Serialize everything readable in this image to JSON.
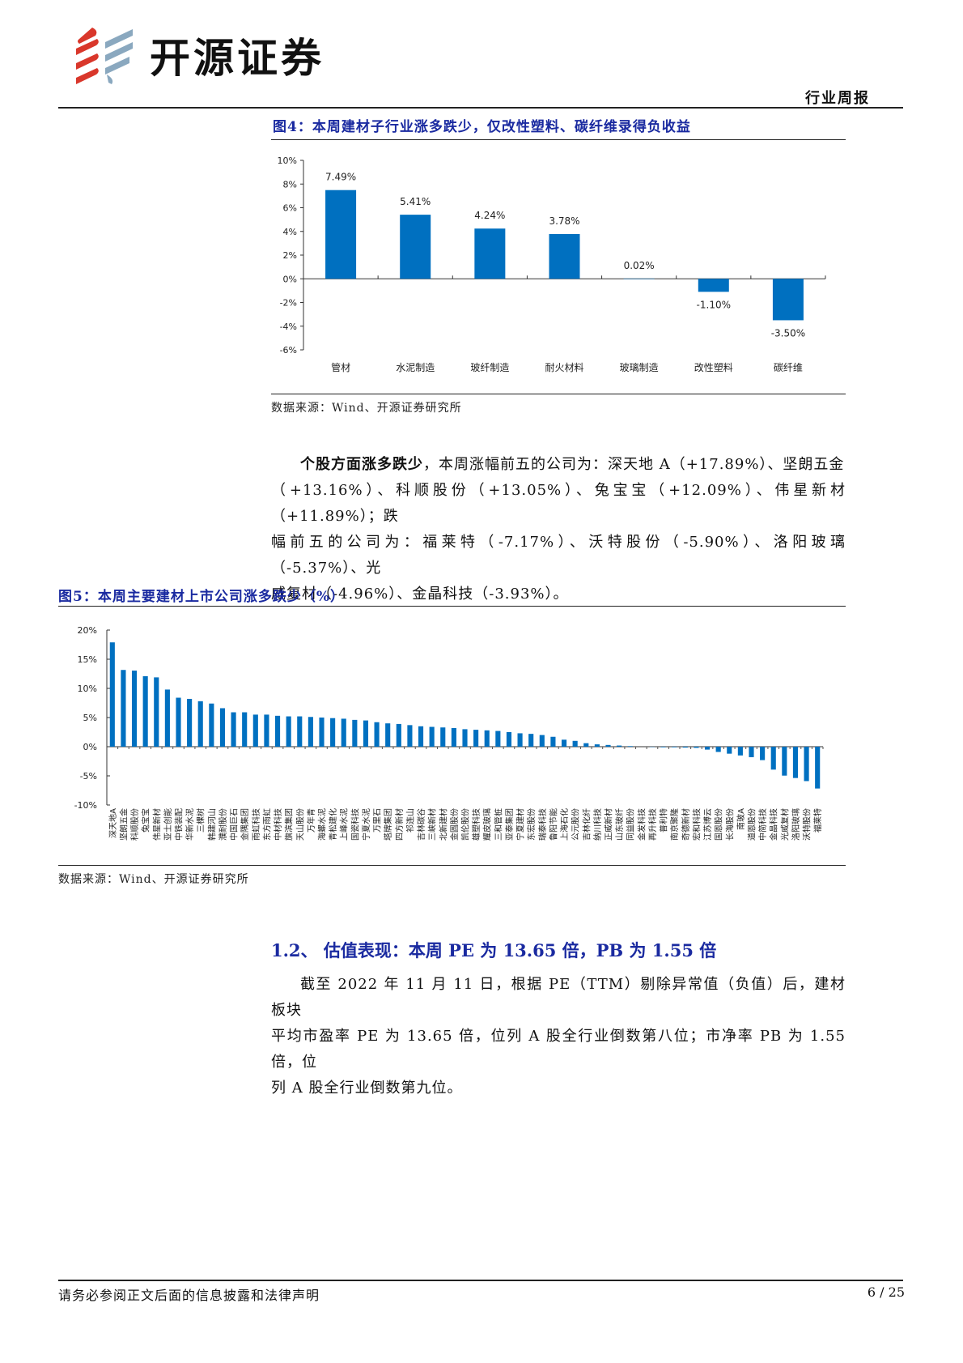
{
  "header": {
    "brand": "开源证券",
    "report_type": "行业周报"
  },
  "figure4": {
    "title": "图4：本周建材子行业涨多跌少，仅改性塑料、碳纤维录得负收益",
    "source": "数据来源：Wind、开源证券研究所"
  },
  "paragraph1": {
    "lead": "个股方面涨多跌少",
    "line1": "，本周涨幅前五的公司为：深天地 A（+17.89%）、坚朗五金",
    "line2": "（+13.16%）、科顺股份（+13.05%）、兔宝宝（+12.09%）、伟星新材（+11.89%）；跌",
    "line3": "幅前五的公司为：福莱特（-7.17%）、沃特股份（-5.90%）、洛阳玻璃（-5.37%）、光",
    "line4": "威复材（-4.96%）、金晶科技（-3.93%）。"
  },
  "figure5": {
    "title": "图5：本周主要建材上市公司涨多跌少（%）",
    "source": "数据来源：Wind、开源证券研究所"
  },
  "section": {
    "title": "1.2、 估值表现：本周 PE 为 13.65 倍，PB 为 1.55 倍",
    "line1": "截至 2022 年 11 月 11 日，根据 PE（TTM）剔除异常值（负值）后，建材板块",
    "line2": "平均市盈率 PE 为 13.65 倍，位列 A 股全行业倒数第八位；市净率 PB 为 1.55 倍，位",
    "line3": "列 A 股全行业倒数第九位。"
  },
  "footer": {
    "disclaimer": "请务必参阅正文后面的信息披露和法律声明",
    "page": "6 / 25"
  },
  "colors": {
    "bar": "#0070C0",
    "title_blue": "#1a2aa0",
    "logo_red": "#d9372b",
    "logo_blue": "#8aa8bf"
  },
  "chart_data": [
    {
      "type": "bar",
      "title": "图4：本周建材子行业涨多跌少，仅改性塑料、碳纤维录得负收益",
      "categories": [
        "管材",
        "水泥制造",
        "玻纤制造",
        "耐火材料",
        "玻璃制造",
        "改性塑料",
        "碳纤维"
      ],
      "values": [
        7.49,
        5.41,
        4.24,
        3.78,
        0.02,
        -1.1,
        -3.5
      ],
      "data_labels": [
        "7.49%",
        "5.41%",
        "4.24%",
        "3.78%",
        "0.02%",
        "-1.10%",
        "-3.50%"
      ],
      "yticks": [
        "10%",
        "8%",
        "6%",
        "4%",
        "2%",
        "0%",
        "-2%",
        "-4%",
        "-6%"
      ],
      "ylim": [
        -6,
        10
      ],
      "xlabel": "",
      "ylabel": "",
      "grid": false
    },
    {
      "type": "bar",
      "title": "图5：本周主要建材上市公司涨多跌少（%）",
      "categories": [
        "深天地A",
        "坚朗五金",
        "科顺股份",
        "兔宝宝",
        "伟星新材",
        "亚士创能",
        "中铁装配",
        "华新水泥",
        "三棵树",
        "韩建河山",
        "濮耐股份",
        "中国巨石",
        "金隅集团",
        "雨虹科技",
        "东方雨虹",
        "中材科技",
        "旗滨集团",
        "天山股份",
        "万年青",
        "海螺水泥",
        "青松建化",
        "上峰水泥",
        "国瓷科技",
        "宁夏水泥",
        "万里石",
        "塔牌集团",
        "四方新材",
        "祁连山",
        "吉林碳谷",
        "三峡新材",
        "北新建材",
        "金圆股份",
        "凯伦股份",
        "雄塑科技",
        "耀皮玻璃",
        "三和管桩",
        "亚泰集团",
        "宁夏建材",
        "东宏股份",
        "瑞泰科技",
        "鲁阳节能",
        "上海石化",
        "公元股份",
        "吉林化纤",
        "纳川科技",
        "正威新材",
        "山东玻纤",
        "同益股份",
        "金发科技",
        "再升科技",
        "普利特",
        "南京聚隆",
        "奇德新材",
        "宏和科技",
        "江苏博云",
        "国恩股份",
        "长海股份",
        "南玻A",
        "道恩股份",
        "中简科技",
        "金晶科技",
        "光威复材",
        "洛阳玻璃",
        "沃特股份",
        "福莱特"
      ],
      "values": [
        17.89,
        13.16,
        13.05,
        12.09,
        11.89,
        9.8,
        8.4,
        8.2,
        7.8,
        7.4,
        6.6,
        5.9,
        5.9,
        5.5,
        5.5,
        5.3,
        5.2,
        5.2,
        5.1,
        5.0,
        4.9,
        4.8,
        4.6,
        4.5,
        4.2,
        4.0,
        3.9,
        3.7,
        3.5,
        3.4,
        3.3,
        3.2,
        3.0,
        2.9,
        2.8,
        2.7,
        2.5,
        2.3,
        2.2,
        2.0,
        1.7,
        1.2,
        1.0,
        0.6,
        0.4,
        0.3,
        0.2,
        0.1,
        0.0,
        -0.05,
        -0.1,
        -0.1,
        -0.15,
        -0.2,
        -0.5,
        -0.9,
        -1.2,
        -1.5,
        -1.8,
        -2.3,
        -3.93,
        -4.96,
        -5.37,
        -5.9,
        -7.17
      ],
      "yticks": [
        "20%",
        "15%",
        "10%",
        "5%",
        "0%",
        "-5%",
        "-10%"
      ],
      "ylim": [
        -10,
        20
      ],
      "xlabel": "",
      "ylabel": "",
      "grid": false
    }
  ]
}
